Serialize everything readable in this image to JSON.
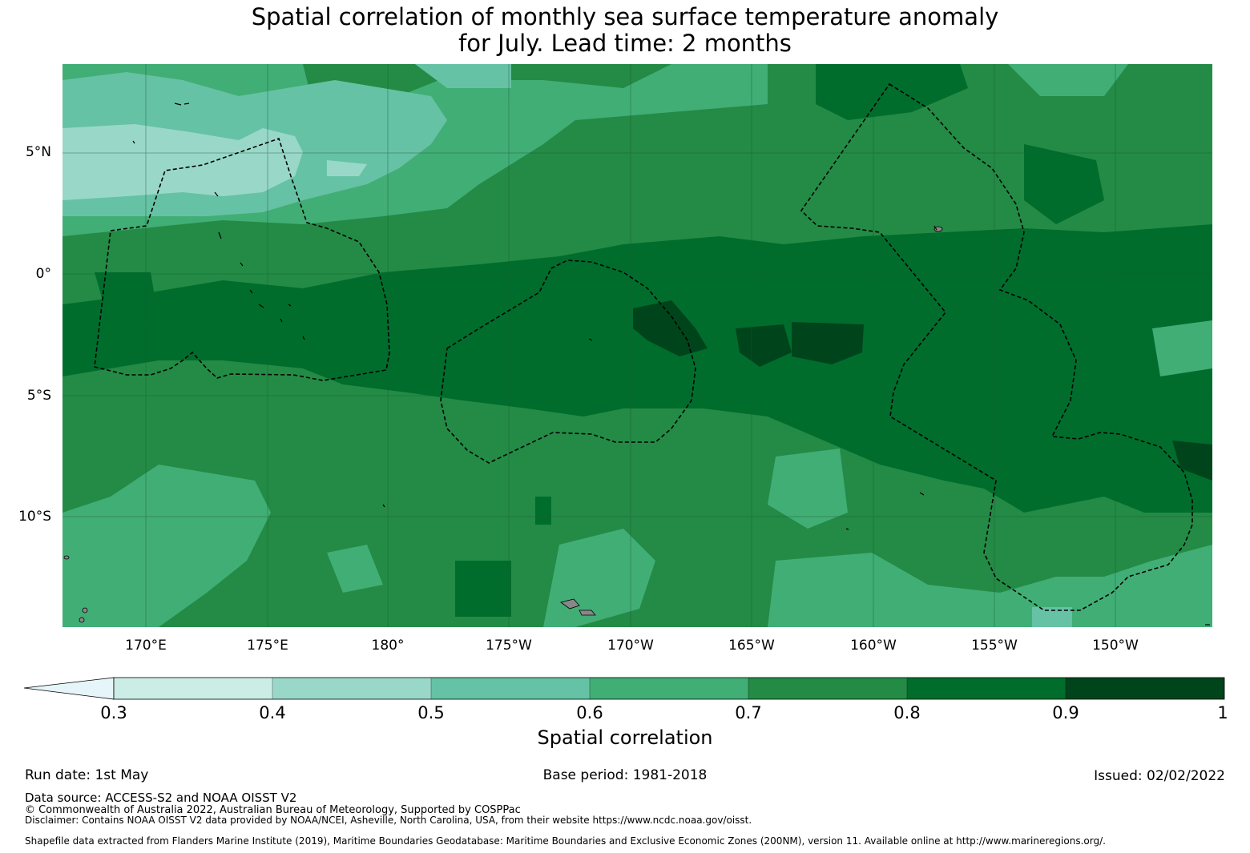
{
  "title_line1": "Spatial correlation of monthly sea surface temperature anomaly",
  "title_line2": "for July. Lead time: 2 months",
  "lat_labels": [
    "5°N",
    "0°",
    "5°S",
    "10°S"
  ],
  "lon_labels": [
    "170°E",
    "175°E",
    "180°",
    "175°W",
    "170°W",
    "165°W",
    "160°W",
    "155°W",
    "150°W"
  ],
  "colorbar": {
    "ticks": [
      "0.3",
      "0.4",
      "0.5",
      "0.6",
      "0.7",
      "0.8",
      "0.9",
      "1"
    ],
    "label": "Spatial correlation",
    "colors": {
      "under": "#e5f5f9",
      "c1": "#ccece6",
      "c2": "#99d8c9",
      "c3": "#66c2a4",
      "c4": "#41ae76",
      "c5": "#238b45",
      "c6": "#006d2c",
      "c7": "#00441b"
    }
  },
  "footer": {
    "run_date": "Run date: 1st May",
    "base_period": "Base period: 1981-2018",
    "issued": "Issued: 02/02/2022",
    "data_source": "Data source: ACCESS-S2 and NOAA OISST V2",
    "copyright": "© Commonwealth of Australia 2022, Australian Bureau of Meteorology, Supported by COSPPac",
    "disclaimer": "Disclaimer: Contains NOAA OISST V2 data provided by NOAA/NCEI, Asheville, North Carolina, USA, from their website https://www.ncdc.noaa.gov/oisst.",
    "shapefile": "Shapefile data extracted from Flanders Marine Institute (2019), Maritime Boundaries Geodatabase: Maritime Boundaries and Exclusive Economic Zones (200NM), version 11. Available online at http://www.marineregions.org/."
  }
}
